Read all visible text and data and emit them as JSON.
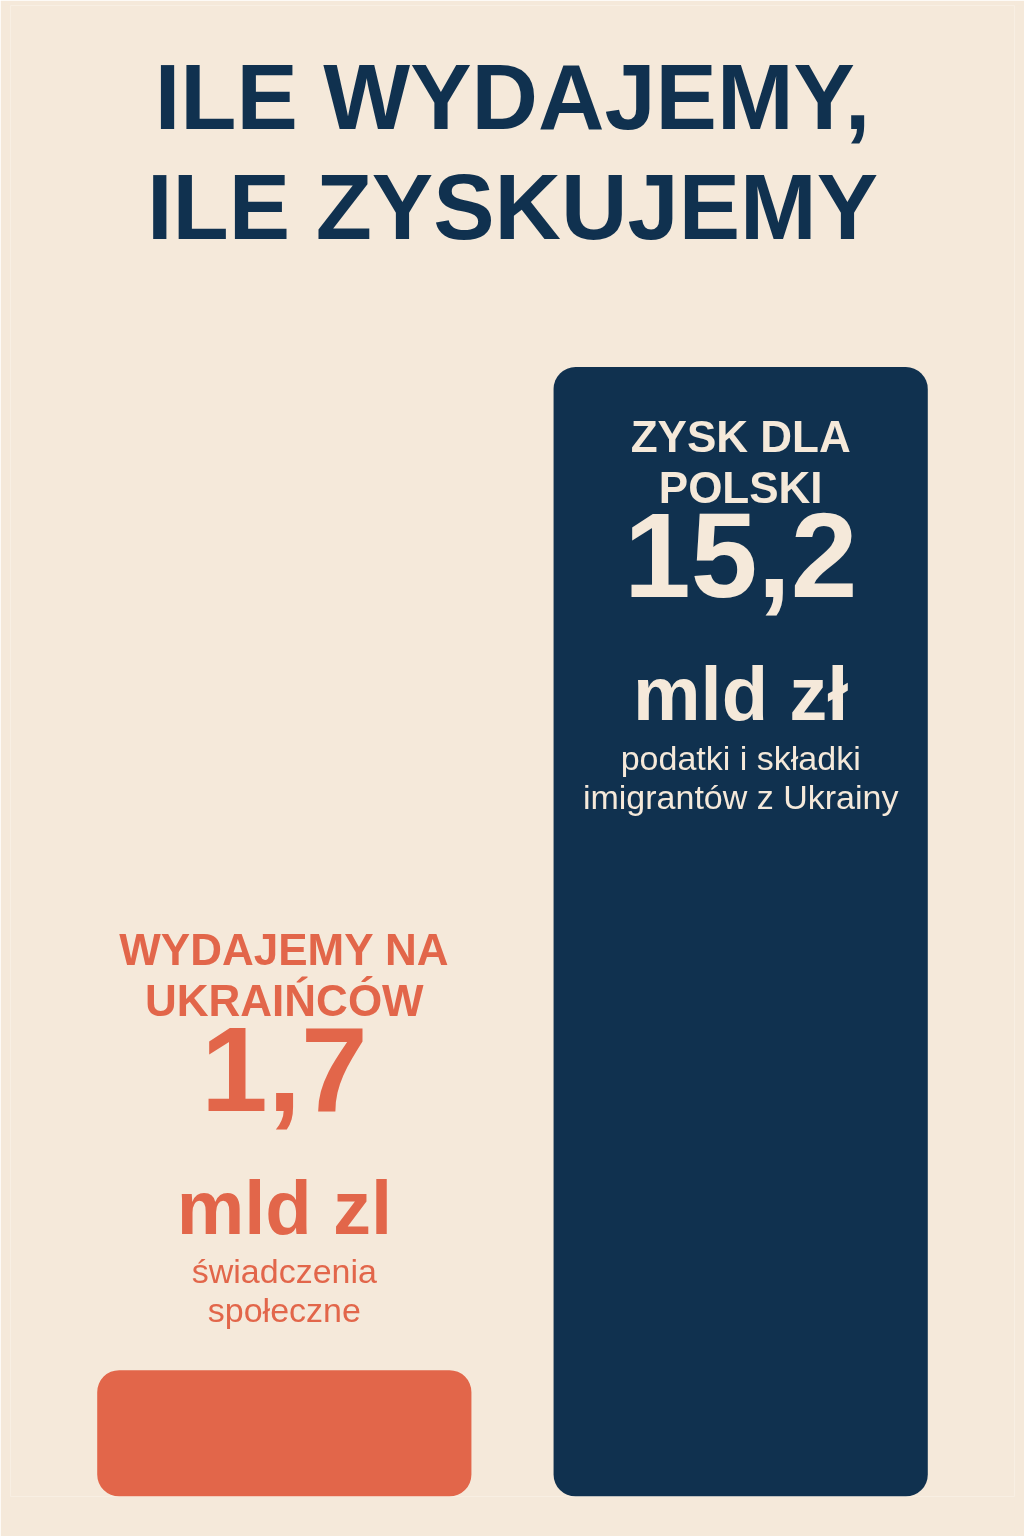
{
  "chart_data": {
    "type": "bar",
    "title": "ILE WYDAJEMY, ILE ZYSKUJEMY",
    "categories": [
      "WYDAJEMY NA UKRAIŃCÓW",
      "ZYSK DLA POLSKI"
    ],
    "values": [
      1.7,
      15.2
    ],
    "colors": [
      "#e2664a",
      "#10314f"
    ],
    "value_labels": [
      "1,7",
      "15,2"
    ],
    "grid": false,
    "annotations": [
      "mld zl",
      "świadczenia społeczne",
      "mld zł",
      "podatki i składki imigrantów z Ukrainy"
    ]
  }
}
